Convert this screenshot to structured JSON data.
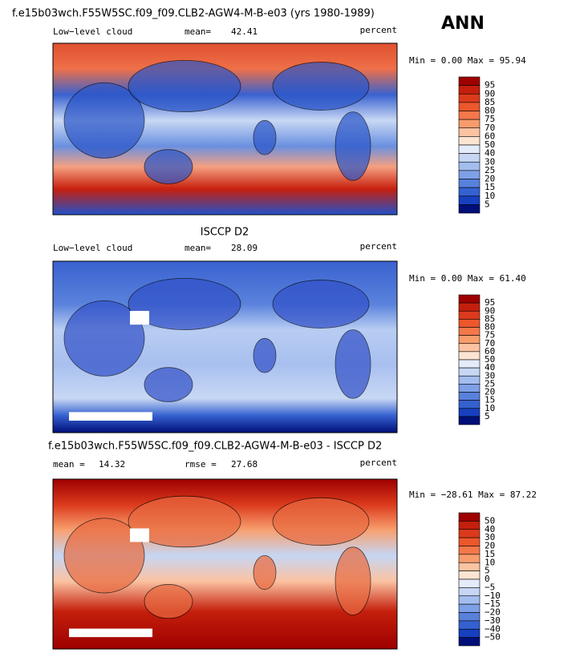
{
  "header": {
    "label": "ANN"
  },
  "palette": [
    "#9e0000",
    "#c41f0c",
    "#dc3a1c",
    "#ec572c",
    "#f4784a",
    "#f89c6c",
    "#fbc3a2",
    "#fde4d2",
    "#e4ebfa",
    "#c6d6f4",
    "#a3bdef",
    "#7ea0e7",
    "#5881dc",
    "#3561d0",
    "#1640bf",
    "#000f78"
  ],
  "panels": [
    {
      "title": "f.e15b03wch.F55W5SC.f09_f09.CLB2-AGW4-M-B-e03 (yrs 1980-1989)",
      "left_label": "Low−level cloud",
      "stat_label": "mean=",
      "stat": "42.41",
      "units": "percent",
      "range": "Min =    0.00 Max =  95.94",
      "colorbar": [
        "95",
        "90",
        "85",
        "80",
        "75",
        "70",
        "60",
        "50",
        "40",
        "30",
        "25",
        "20",
        "15",
        "10",
        "5"
      ]
    },
    {
      "title": "ISCCP D2",
      "left_label": "Low−level cloud",
      "stat_label": "mean=",
      "stat": "28.09",
      "units": "percent",
      "range": "Min =    0.00 Max =  61.40",
      "colorbar": [
        "95",
        "90",
        "85",
        "80",
        "75",
        "70",
        "60",
        "50",
        "40",
        "30",
        "25",
        "20",
        "15",
        "10",
        "5"
      ]
    },
    {
      "title": "f.e15b03wch.F55W5SC.f09_f09.CLB2-AGW4-M-B-e03 - ISCCP D2",
      "left_label": "mean =",
      "left_value": "14.32",
      "stat_label": "rmse =",
      "stat": "27.68",
      "units": "percent",
      "range": "Min = −28.61 Max =  87.22",
      "colorbar": [
        "50",
        "40",
        "30",
        "20",
        "15",
        "10",
        "5",
        "0",
        "−5",
        "−10",
        "−15",
        "−20",
        "−30",
        "−40",
        "−50"
      ]
    }
  ]
}
